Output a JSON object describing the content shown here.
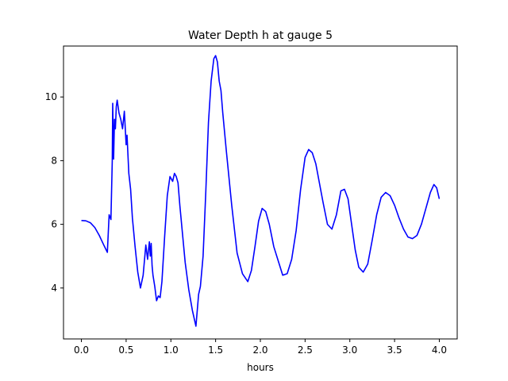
{
  "chart_data": {
    "type": "line",
    "title": "Water Depth h at gauge 5",
    "xlabel": "hours",
    "ylabel": "",
    "xlim": [
      -0.2,
      4.2
    ],
    "ylim": [
      2.4,
      11.6
    ],
    "xticks": [
      0.0,
      0.5,
      1.0,
      1.5,
      2.0,
      2.5,
      3.0,
      3.5,
      4.0
    ],
    "xtick_labels": [
      "0.0",
      "0.5",
      "1.0",
      "1.5",
      "2.0",
      "2.5",
      "3.0",
      "3.5",
      "4.0"
    ],
    "yticks": [
      4,
      6,
      8,
      10
    ],
    "ytick_labels": [
      "4",
      "6",
      "8",
      "10"
    ],
    "grid": false,
    "series": [
      {
        "color": "#0000ff",
        "x": [
          0.0,
          0.05,
          0.1,
          0.15,
          0.2,
          0.25,
          0.29,
          0.31,
          0.33,
          0.345,
          0.35,
          0.36,
          0.37,
          0.38,
          0.39,
          0.4,
          0.42,
          0.44,
          0.46,
          0.48,
          0.5,
          0.51,
          0.52,
          0.53,
          0.55,
          0.57,
          0.6,
          0.63,
          0.66,
          0.69,
          0.72,
          0.74,
          0.75,
          0.76,
          0.77,
          0.78,
          0.79,
          0.8,
          0.82,
          0.84,
          0.86,
          0.88,
          0.9,
          0.93,
          0.96,
          0.99,
          1.02,
          1.04,
          1.06,
          1.08,
          1.1,
          1.13,
          1.16,
          1.2,
          1.24,
          1.28,
          1.31,
          1.33,
          1.36,
          1.39,
          1.42,
          1.45,
          1.48,
          1.5,
          1.52,
          1.54,
          1.56,
          1.58,
          1.62,
          1.68,
          1.74,
          1.8,
          1.86,
          1.9,
          1.94,
          1.98,
          2.02,
          2.06,
          2.1,
          2.15,
          2.2,
          2.25,
          2.3,
          2.35,
          2.4,
          2.45,
          2.5,
          2.54,
          2.58,
          2.62,
          2.66,
          2.7,
          2.75,
          2.8,
          2.85,
          2.9,
          2.94,
          2.98,
          3.02,
          3.06,
          3.1,
          3.15,
          3.2,
          3.25,
          3.3,
          3.35,
          3.4,
          3.45,
          3.5,
          3.55,
          3.6,
          3.65,
          3.7,
          3.75,
          3.8,
          3.85,
          3.9,
          3.94,
          3.97,
          4.0
        ],
        "y": [
          6.12,
          6.11,
          6.05,
          5.9,
          5.65,
          5.35,
          5.12,
          6.3,
          6.15,
          8.0,
          9.8,
          8.05,
          9.3,
          9.0,
          9.7,
          9.9,
          9.5,
          9.3,
          9.0,
          9.55,
          8.5,
          8.8,
          8.2,
          7.6,
          7.1,
          6.2,
          5.3,
          4.5,
          4.0,
          4.4,
          5.35,
          4.9,
          5.2,
          5.45,
          5.0,
          5.4,
          4.7,
          4.4,
          4.05,
          3.6,
          3.75,
          3.7,
          4.2,
          5.6,
          6.9,
          7.5,
          7.35,
          7.6,
          7.5,
          7.3,
          6.6,
          5.7,
          4.8,
          3.95,
          3.3,
          2.8,
          3.8,
          4.05,
          5.0,
          7.0,
          9.2,
          10.5,
          11.2,
          11.3,
          11.1,
          10.5,
          10.2,
          9.5,
          8.3,
          6.6,
          5.1,
          4.45,
          4.2,
          4.55,
          5.3,
          6.1,
          6.5,
          6.4,
          6.0,
          5.3,
          4.85,
          4.4,
          4.45,
          4.9,
          5.8,
          7.1,
          8.1,
          8.35,
          8.25,
          7.9,
          7.3,
          6.7,
          6.0,
          5.85,
          6.3,
          7.05,
          7.1,
          6.8,
          6.0,
          5.2,
          4.65,
          4.5,
          4.75,
          5.5,
          6.3,
          6.85,
          7.0,
          6.9,
          6.6,
          6.2,
          5.85,
          5.6,
          5.55,
          5.65,
          6.0,
          6.5,
          7.0,
          7.25,
          7.15,
          6.8
        ]
      }
    ]
  }
}
